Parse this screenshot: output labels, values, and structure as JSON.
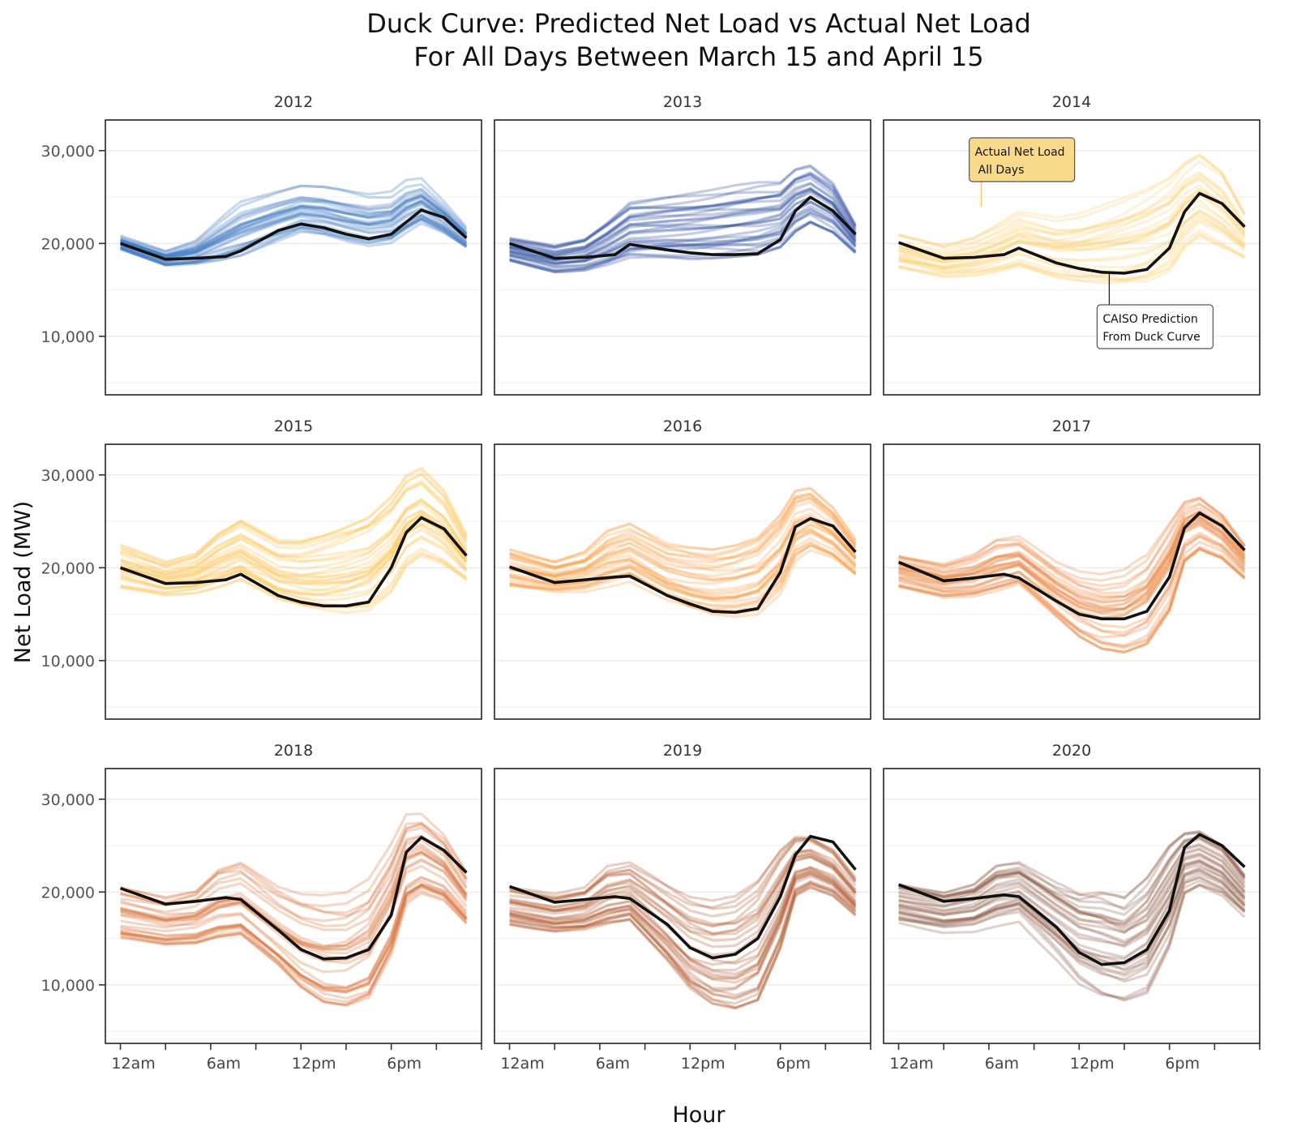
{
  "chart_data": {
    "type": "line",
    "title": "Duck Curve: Predicted Net Load vs Actual Net Load",
    "subtitle": "For All Days Between March 15 and April 15",
    "xlabel": "Hour",
    "ylabel": "Net Load (MW)",
    "xlim": [
      -1,
      24
    ],
    "ylim": [
      3700,
      33300
    ],
    "grid": true,
    "y_ticks": [
      {
        "value": 10000,
        "label": "10,000"
      },
      {
        "value": 20000,
        "label": "20,000"
      },
      {
        "value": 30000,
        "label": "30,000"
      }
    ],
    "y_minor_grid": [
      5000,
      15000,
      25000
    ],
    "x_ticks": [
      0,
      3,
      6,
      9,
      12,
      15,
      18,
      21,
      24
    ],
    "x_tick_labels": [
      {
        "value": 0,
        "label": "12am"
      },
      {
        "value": 6,
        "label": "6am"
      },
      {
        "value": 12,
        "label": "12pm"
      },
      {
        "value": 18,
        "label": "6pm"
      }
    ],
    "prediction_hours": [
      0,
      3,
      5,
      7,
      8,
      10.5,
      12,
      13.5,
      15,
      16.5,
      18,
      19,
      20,
      21.5,
      23
    ],
    "actual_hours": [
      0,
      3,
      5,
      6.5,
      8,
      10.5,
      12,
      13.5,
      15,
      16.5,
      18,
      19,
      20,
      21.5,
      23
    ],
    "panels": [
      {
        "year": "2012",
        "color": "#3d78bd",
        "prediction": [
          20000,
          18300,
          18400,
          18600,
          19200,
          21400,
          22100,
          21700,
          21000,
          20500,
          21000,
          22300,
          23600,
          22800,
          20600
        ],
        "actual_low": [
          19300,
          17600,
          17800,
          18200,
          18700,
          20300,
          21200,
          20800,
          20100,
          19600,
          19900,
          21000,
          22000,
          21000,
          19500
        ],
        "actual_high": [
          21000,
          19400,
          20500,
          22600,
          24500,
          25600,
          26200,
          26100,
          25700,
          25300,
          25600,
          26900,
          27200,
          24800,
          22000
        ]
      },
      {
        "year": "2013",
        "color": "#2a4d9e",
        "prediction": [
          20000,
          18400,
          18500,
          18800,
          19900,
          19300,
          19000,
          18800,
          18800,
          18900,
          20400,
          23500,
          25000,
          23500,
          21000
        ],
        "actual_low": [
          18200,
          16900,
          17000,
          17500,
          18200,
          18300,
          18300,
          18400,
          18600,
          18800,
          19600,
          21300,
          22300,
          21200,
          19000
        ],
        "actual_high": [
          20600,
          19800,
          20600,
          22500,
          24700,
          25300,
          25600,
          25900,
          26300,
          26600,
          26600,
          28000,
          28400,
          26500,
          22000
        ]
      },
      {
        "year": "2014",
        "color": "#fbd37a",
        "prediction": [
          20100,
          18400,
          18500,
          18800,
          19500,
          17900,
          17300,
          16900,
          16800,
          17200,
          19500,
          23400,
          25400,
          24300,
          21800
        ],
        "actual_low": [
          17400,
          16400,
          16500,
          16900,
          17600,
          16400,
          16000,
          15700,
          15600,
          15900,
          17000,
          19500,
          20800,
          19600,
          18400
        ],
        "actual_high": [
          21400,
          20200,
          21200,
          22600,
          24000,
          23200,
          23600,
          24500,
          25500,
          26600,
          28000,
          29600,
          30600,
          28600,
          23800
        ]
      },
      {
        "year": "2015",
        "color": "#fcc24f",
        "prediction": [
          20000,
          18300,
          18400,
          18700,
          19300,
          17000,
          16300,
          15900,
          15900,
          16300,
          20000,
          23800,
          25400,
          24200,
          21300
        ],
        "actual_low": [
          17800,
          17000,
          17200,
          17800,
          18600,
          16400,
          15700,
          15200,
          15100,
          15400,
          17400,
          20200,
          21300,
          20300,
          18600
        ],
        "actual_high": [
          22600,
          20700,
          21600,
          23800,
          25200,
          23000,
          23000,
          23800,
          24700,
          25800,
          28000,
          30200,
          31000,
          28500,
          23600
        ]
      },
      {
        "year": "2016",
        "color": "#f79d45",
        "prediction": [
          20100,
          18400,
          18700,
          19000,
          19100,
          17000,
          16100,
          15300,
          15200,
          15600,
          19500,
          24400,
          25300,
          24500,
          21700
        ],
        "actual_low": [
          17800,
          17300,
          17400,
          17900,
          18400,
          16100,
          15100,
          14500,
          14400,
          14800,
          17000,
          20600,
          21700,
          20800,
          19000
        ],
        "actual_high": [
          22200,
          20800,
          21800,
          24000,
          24800,
          22700,
          22400,
          22200,
          22800,
          23800,
          26300,
          28800,
          29000,
          26800,
          23200
        ]
      },
      {
        "year": "2017",
        "color": "#e8813a",
        "prediction": [
          20600,
          18600,
          18900,
          19300,
          18900,
          16400,
          15000,
          14500,
          14500,
          15300,
          19000,
          24300,
          25900,
          24500,
          21900
        ],
        "actual_low": [
          18000,
          16800,
          16900,
          17500,
          18300,
          14700,
          12600,
          11300,
          10900,
          11800,
          15400,
          20700,
          22000,
          21000,
          18800
        ],
        "actual_high": [
          21600,
          20600,
          21600,
          23200,
          23400,
          20600,
          19600,
          19300,
          19800,
          21500,
          25300,
          27600,
          28100,
          26200,
          22800
        ]
      },
      {
        "year": "2018",
        "color": "#d86f36",
        "prediction": [
          20400,
          18700,
          19000,
          19400,
          19200,
          15900,
          13800,
          12800,
          12900,
          13800,
          17500,
          24300,
          25900,
          24500,
          22100
        ],
        "actual_low": [
          15000,
          14300,
          14500,
          15200,
          15500,
          12200,
          9800,
          8200,
          7800,
          8600,
          13200,
          18700,
          19800,
          19000,
          16500
        ],
        "actual_high": [
          21400,
          20200,
          21000,
          23500,
          24200,
          21400,
          20600,
          20500,
          20800,
          22400,
          26300,
          29400,
          29500,
          27200,
          23000
        ]
      },
      {
        "year": "2019",
        "color": "#b0572c",
        "prediction": [
          20600,
          18900,
          19200,
          19500,
          19300,
          16500,
          14000,
          12900,
          13300,
          15000,
          19500,
          24000,
          26000,
          25400,
          22400
        ],
        "actual_low": [
          16500,
          15700,
          15900,
          16500,
          17000,
          12600,
          9600,
          8000,
          7500,
          8400,
          14000,
          19600,
          20500,
          19600,
          17500
        ],
        "actual_high": [
          20600,
          19800,
          20500,
          22800,
          23200,
          20800,
          19500,
          19100,
          19700,
          21600,
          25000,
          26300,
          26200,
          24800,
          21600
        ]
      },
      {
        "year": "2020",
        "color": "#8c5a44",
        "prediction": [
          20800,
          19000,
          19300,
          19700,
          19500,
          16200,
          13500,
          12200,
          12400,
          13800,
          18000,
          24800,
          26200,
          25000,
          22700
        ],
        "actual_low": [
          16500,
          15600,
          15700,
          16300,
          16800,
          12400,
          9400,
          7800,
          7300,
          8200,
          13300,
          19300,
          20200,
          19300,
          17200
        ],
        "actual_high": [
          20800,
          19900,
          20800,
          22800,
          23200,
          21000,
          20100,
          20200,
          19400,
          21500,
          25000,
          26300,
          26500,
          25000,
          21800
        ]
      }
    ],
    "annotations": [
      {
        "panel": "2014",
        "text_lines": [
          "Actual Net Load",
          "All Days"
        ],
        "fill": "#f9d98a",
        "target_hour": 5.5,
        "target_value": 24000
      },
      {
        "panel": "2014",
        "text_lines": [
          "CAISO Prediction",
          "From Duck Curve"
        ],
        "fill": "#ffffff",
        "target_hour": 14,
        "target_value": 16800
      }
    ],
    "prediction_color": "#111111"
  }
}
